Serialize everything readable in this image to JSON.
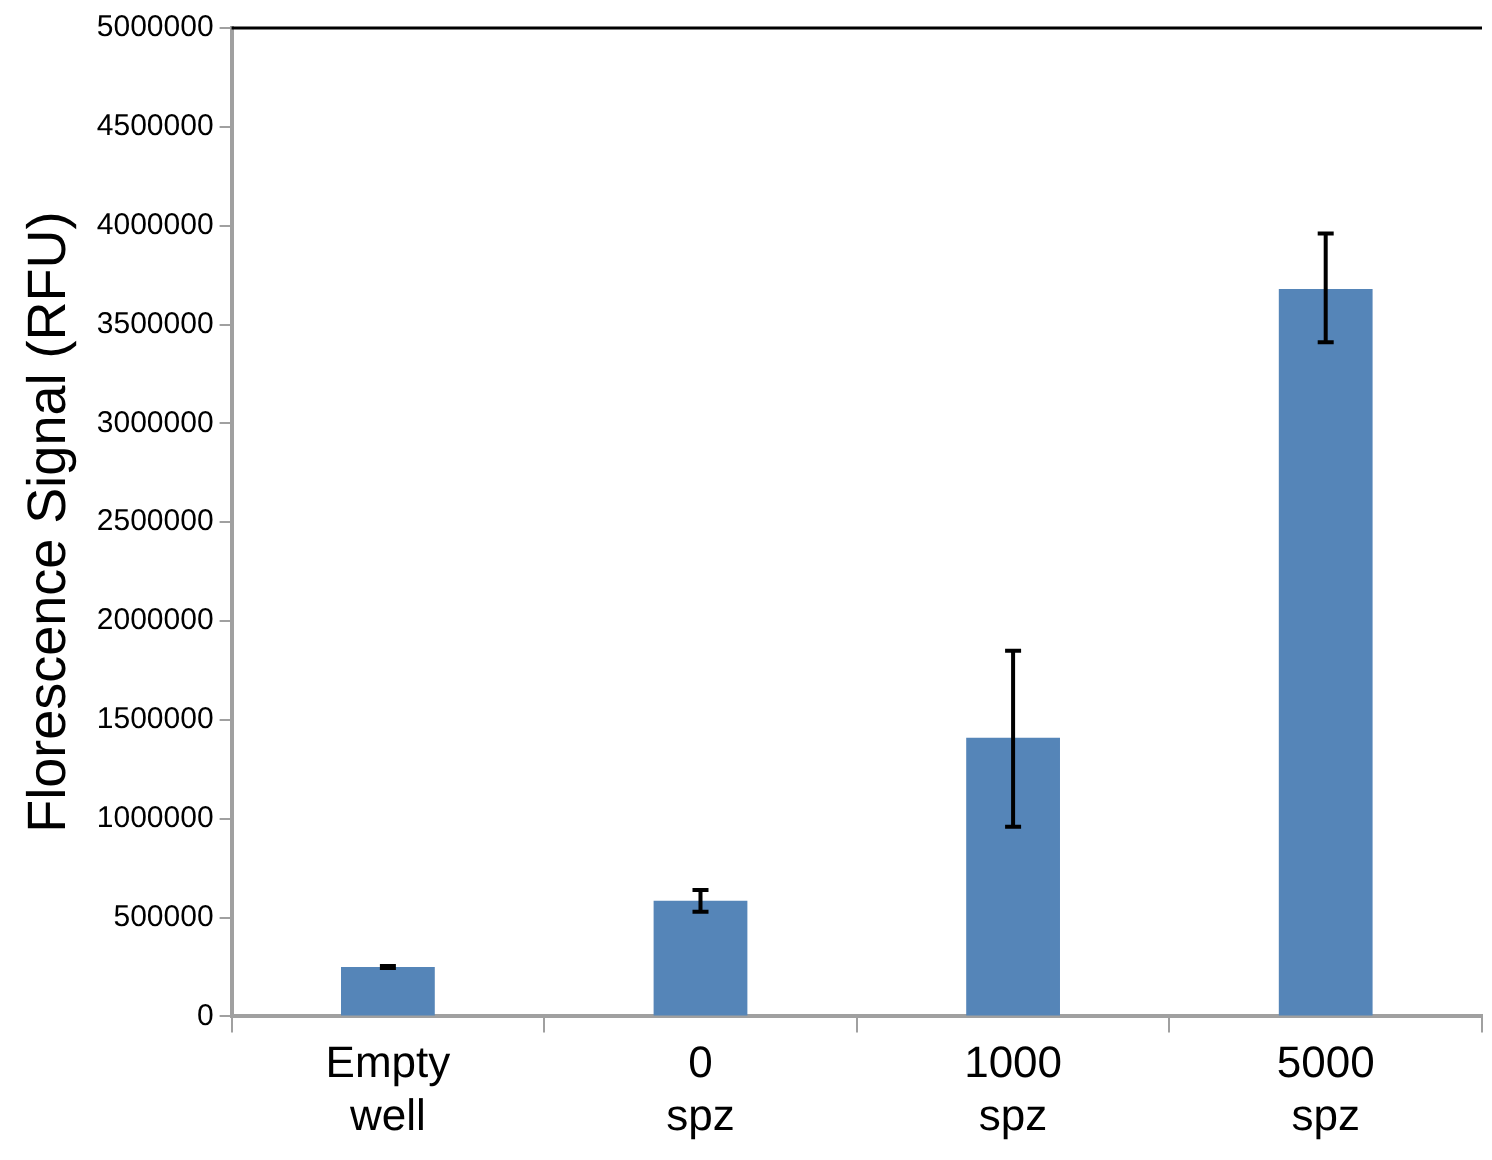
{
  "chart_data": {
    "type": "bar",
    "ylabel": "Florescence Signal (RFU)",
    "categories": [
      "Empty well",
      "0 spz",
      "1000 spz",
      "5000 spz"
    ],
    "values": [
      250000,
      585000,
      1410000,
      3680000
    ],
    "errors": [
      [
        245000,
        255000
      ],
      [
        530000,
        640000
      ],
      [
        960000,
        1850000
      ],
      [
        3410000,
        3960000
      ]
    ],
    "color": "#5585b8",
    "ylim": [
      0,
      5000000
    ],
    "yticks": [
      0,
      500000,
      1000000,
      1500000,
      2000000,
      2500000,
      3000000,
      3500000,
      4000000,
      4500000,
      5000000
    ],
    "grid": false,
    "legend": false
  }
}
